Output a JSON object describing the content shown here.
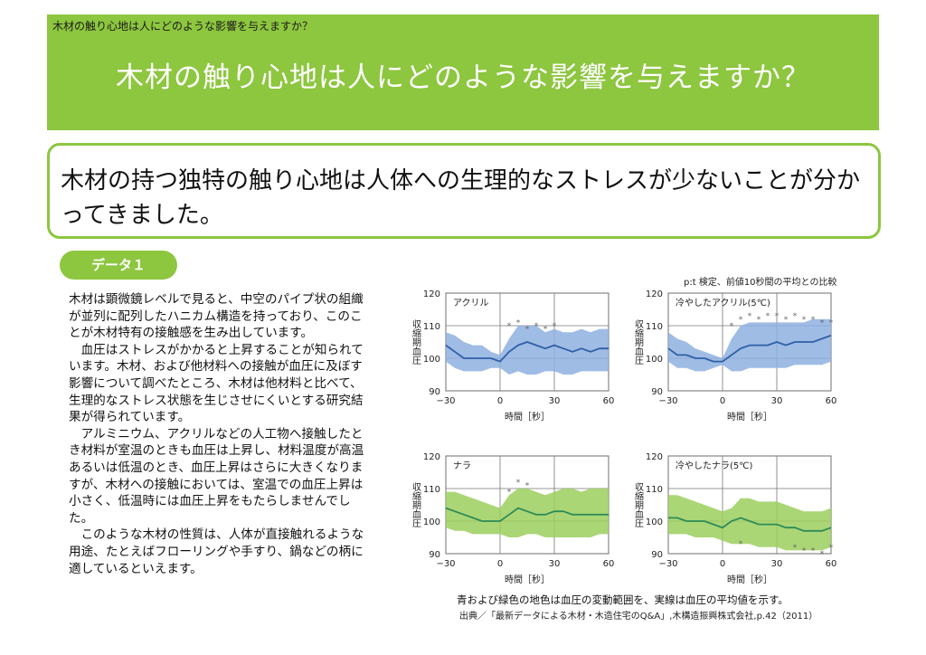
{
  "header": {
    "breadcrumb": "木材の触り心地は人にどのような影響を与えますか？",
    "title": "木材の触り心地は人にどのような影響を与えますか？"
  },
  "lead": "木材の持つ独特の触り心地は人体への生理的なストレスが少ないことが分かってきました。",
  "section_label": "データ１",
  "body": {
    "p1": "木材は顕微鏡レベルで見ると、中空のパイプ状の組織が並列に配列したハニカム構造を持っており、このことが木材特有の接触感を生み出しています。",
    "p2": "　血圧はストレスがかかると上昇することが知られています。木材、および他材料への接触が血圧に及ぼす影響について調べたところ、木材は他材料と比べて、生理的なストレス状態を生じさせにくいとする研究結果が得られています。",
    "p3": "　アルミニウム、アクリルなどの人工物へ接触したとき材料が室温のときも血圧は上昇し、材料温度が高温あるいは低温のとき、血圧上昇はさらに大きくなりますが、木材への接触においては、室温での血圧上昇は小さく、低温時には血圧上昇をもたらしませんでした。",
    "p4": "　このような木材の性質は、人体が直接触れるような用途、たとえばフローリングや手すり、鍋などの柄に適しているといえます。"
  },
  "figure_note": "p:t 検定、前値10秒間の平均との比較",
  "caption": "青および緑色の地色は血圧の変動範囲を、実線は血圧の平均値を示す。",
  "source": "出典／「最新データによる木材・木造住宅のQ&A」,木構造振興株式会社,p.42（2011）",
  "colors": {
    "green": "#8dc63f",
    "blue_band": "#8eb0e0",
    "blue_line": "#2f5fa6",
    "green_band": "#9ccf5e",
    "green_line": "#2e8b57"
  },
  "chart_data": [
    {
      "type": "line",
      "title": "アクリル",
      "xlabel": "時間［秒］",
      "ylabel": "収縮期血圧",
      "xlim": [
        -30,
        60
      ],
      "ylim": [
        90,
        120
      ],
      "xticks": [
        "−30",
        "0",
        "30",
        "60"
      ],
      "yticks": [
        "120",
        "110",
        "100",
        "90"
      ],
      "x": [
        -30,
        -25,
        -20,
        -15,
        -10,
        -5,
        0,
        5,
        10,
        15,
        20,
        25,
        30,
        35,
        40,
        45,
        50,
        55,
        60
      ],
      "mean": [
        104,
        102,
        100,
        100,
        100,
        100,
        99,
        102,
        104,
        105,
        104,
        103,
        104,
        103,
        102,
        103,
        102,
        103,
        103
      ],
      "band_low": [
        99,
        97,
        96,
        96,
        96,
        97,
        97,
        95,
        96,
        95,
        95,
        96,
        96,
        95,
        95,
        96,
        96,
        96,
        96
      ],
      "band_high": [
        108,
        107,
        105,
        104,
        104,
        102,
        101,
        106,
        110,
        110,
        110,
        108,
        109,
        108,
        108,
        109,
        108,
        109,
        109
      ],
      "significant_x": [
        5,
        10,
        15,
        20,
        25,
        30
      ],
      "significant_y": [
        110,
        111,
        109,
        110,
        109,
        110
      ],
      "color": "blue"
    },
    {
      "type": "line",
      "title": "冷やしたアクリル(5℃)",
      "xlabel": "時間［秒］",
      "ylabel": "収縮期血圧",
      "xlim": [
        -30,
        60
      ],
      "ylim": [
        90,
        120
      ],
      "xticks": [
        "−30",
        "0",
        "30",
        "60"
      ],
      "yticks": [
        "120",
        "110",
        "100",
        "90"
      ],
      "x": [
        -30,
        -25,
        -20,
        -15,
        -10,
        -5,
        0,
        5,
        10,
        15,
        20,
        25,
        30,
        35,
        40,
        45,
        50,
        55,
        60
      ],
      "mean": [
        103,
        101,
        101,
        100,
        100,
        99,
        99,
        101,
        103,
        104,
        104,
        104,
        105,
        104,
        105,
        105,
        105,
        106,
        107
      ],
      "band_low": [
        99,
        97,
        97,
        96,
        96,
        97,
        98,
        96,
        96,
        97,
        97,
        97,
        97,
        97,
        98,
        98,
        98,
        98,
        99
      ],
      "band_high": [
        108,
        106,
        105,
        103,
        102,
        101,
        100,
        106,
        110,
        111,
        111,
        111,
        111,
        111,
        111,
        111,
        112,
        112,
        112
      ],
      "significant_x": [
        5,
        10,
        15,
        20,
        25,
        30,
        35,
        40,
        45,
        50,
        55,
        60
      ],
      "significant_y": [
        110,
        112,
        113,
        112,
        113,
        113,
        112,
        113,
        112,
        112,
        111,
        111
      ],
      "color": "blue"
    },
    {
      "type": "line",
      "title": "ナラ",
      "xlabel": "時間［秒］",
      "ylabel": "収縮期血圧",
      "xlim": [
        -30,
        60
      ],
      "ylim": [
        90,
        120
      ],
      "xticks": [
        "−30",
        "0",
        "30",
        "60"
      ],
      "yticks": [
        "120",
        "110",
        "100",
        "90"
      ],
      "x": [
        -30,
        -25,
        -20,
        -15,
        -10,
        -5,
        0,
        5,
        10,
        15,
        20,
        25,
        30,
        35,
        40,
        45,
        50,
        55,
        60
      ],
      "mean": [
        104,
        103,
        102,
        101,
        100,
        100,
        100,
        102,
        104,
        103,
        102,
        102,
        103,
        103,
        102,
        102,
        102,
        102,
        102
      ],
      "band_low": [
        98,
        97,
        97,
        96,
        96,
        96,
        96,
        95,
        95,
        96,
        96,
        95,
        95,
        95,
        95,
        95,
        95,
        96,
        96
      ],
      "band_high": [
        109,
        109,
        108,
        107,
        106,
        105,
        104,
        108,
        110,
        110,
        109,
        108,
        109,
        110,
        110,
        109,
        110,
        110,
        110
      ],
      "significant_x": [
        5,
        10,
        15
      ],
      "significant_y": [
        109,
        112,
        111
      ],
      "color": "green"
    },
    {
      "type": "line",
      "title": "冷やしたナラ(5℃)",
      "xlabel": "時間［秒］",
      "ylabel": "収縮期血圧",
      "xlim": [
        -30,
        60
      ],
      "ylim": [
        90,
        120
      ],
      "xticks": [
        "−30",
        "0",
        "30",
        "60"
      ],
      "yticks": [
        "120",
        "110",
        "100",
        "90"
      ],
      "x": [
        -30,
        -25,
        -20,
        -15,
        -10,
        -5,
        0,
        5,
        10,
        15,
        20,
        25,
        30,
        35,
        40,
        45,
        50,
        55,
        60
      ],
      "mean": [
        101,
        101,
        100,
        100,
        100,
        99,
        98,
        100,
        101,
        100,
        99,
        99,
        99,
        98,
        98,
        97,
        97,
        97,
        98
      ],
      "band_low": [
        96,
        96,
        96,
        95,
        95,
        95,
        94,
        93,
        93,
        93,
        92,
        92,
        92,
        91,
        91,
        91,
        91,
        91,
        92
      ],
      "band_high": [
        108,
        108,
        107,
        106,
        105,
        104,
        103,
        104,
        107,
        107,
        106,
        106,
        106,
        105,
        104,
        103,
        103,
        103,
        104
      ],
      "significant_x": [
        10,
        40,
        45,
        50,
        55,
        60
      ],
      "significant_y": [
        93,
        92,
        91,
        91,
        90,
        92
      ],
      "color": "green"
    }
  ]
}
